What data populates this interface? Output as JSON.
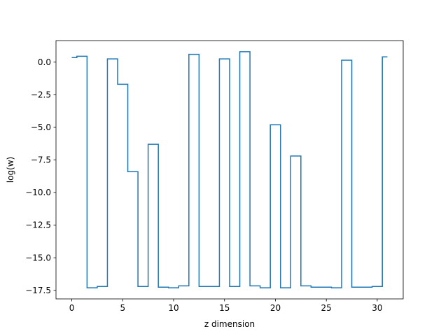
{
  "chart_data": {
    "type": "line",
    "drawstyle": "steps-mid",
    "title": "",
    "xlabel": "z dimension",
    "ylabel": "log(w)",
    "xlim": [
      -1.55,
      32.55
    ],
    "ylim": [
      -18.15,
      1.65
    ],
    "xticks": [
      0,
      5,
      10,
      15,
      20,
      25,
      30
    ],
    "yticks": [
      0.0,
      -2.5,
      -5.0,
      -7.5,
      -10.0,
      -12.5,
      -15.0,
      -17.5
    ],
    "grid": false,
    "legend": "none",
    "series": [
      {
        "color": "#1f77b4",
        "x": [
          0,
          1,
          2,
          3,
          4,
          5,
          6,
          7,
          8,
          9,
          10,
          11,
          12,
          13,
          14,
          15,
          16,
          17,
          18,
          19,
          20,
          21,
          22,
          23,
          24,
          25,
          26,
          27,
          28,
          29,
          30,
          31
        ],
        "y": [
          0.35,
          0.45,
          -17.3,
          -17.2,
          0.25,
          -1.7,
          -8.4,
          -17.2,
          -6.3,
          -17.25,
          -17.3,
          -17.15,
          0.6,
          -17.2,
          -17.2,
          0.25,
          -17.2,
          0.8,
          -17.15,
          -17.3,
          -4.8,
          -17.3,
          -7.2,
          -17.15,
          -17.25,
          -17.25,
          -17.3,
          0.15,
          -17.25,
          -17.25,
          -17.2,
          0.4
        ]
      }
    ]
  }
}
